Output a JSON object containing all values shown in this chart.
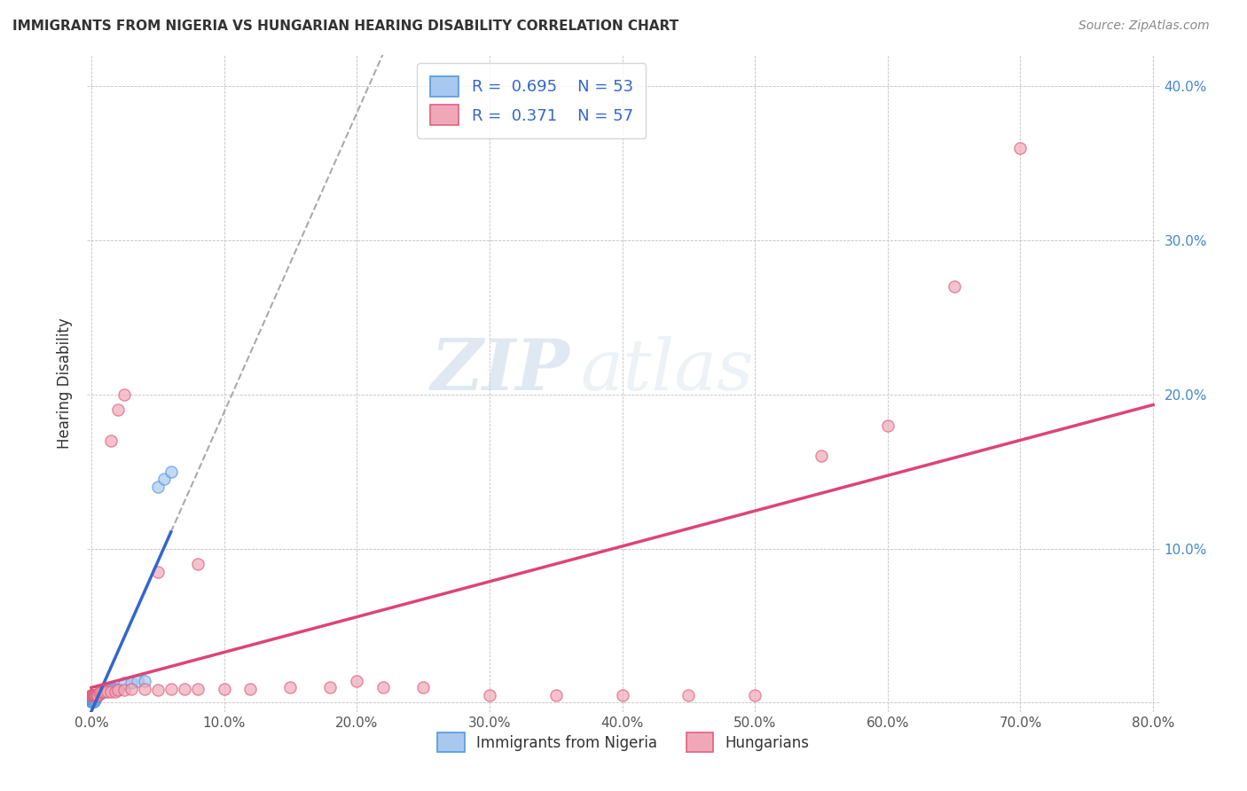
{
  "title": "IMMIGRANTS FROM NIGERIA VS HUNGARIAN HEARING DISABILITY CORRELATION CHART",
  "source": "Source: ZipAtlas.com",
  "ylabel": "Hearing Disability",
  "xlim": [
    -0.003,
    0.805
  ],
  "ylim": [
    -0.006,
    0.42
  ],
  "color_nigeria_fill": "#a8c8f0",
  "color_nigeria_edge": "#5599dd",
  "color_hungarian_fill": "#f0a8b8",
  "color_hungarian_edge": "#e06080",
  "color_nigeria_line": "#3366cc",
  "color_hungarian_line": "#dd4477",
  "color_dashed": "#aaaaaa",
  "watermark_color": "#dde8f0",
  "nigeria_x": [
    0.0002,
    0.0003,
    0.0004,
    0.0005,
    0.0006,
    0.0007,
    0.0008,
    0.0009,
    0.001,
    0.0011,
    0.0012,
    0.0013,
    0.0014,
    0.0015,
    0.0016,
    0.0017,
    0.0018,
    0.0019,
    0.002,
    0.0021,
    0.0022,
    0.0023,
    0.0024,
    0.0025,
    0.0026,
    0.0027,
    0.003,
    0.0032,
    0.0035,
    0.004,
    0.0042,
    0.0045,
    0.005,
    0.0055,
    0.006,
    0.0065,
    0.007,
    0.0075,
    0.008,
    0.009,
    0.01,
    0.012,
    0.014,
    0.016,
    0.018,
    0.02,
    0.025,
    0.03,
    0.035,
    0.04,
    0.05,
    0.055,
    0.06
  ],
  "nigeria_y": [
    0.001,
    0.001,
    0.001,
    0.002,
    0.001,
    0.002,
    0.001,
    0.001,
    0.002,
    0.001,
    0.002,
    0.001,
    0.002,
    0.001,
    0.002,
    0.002,
    0.001,
    0.002,
    0.002,
    0.002,
    0.003,
    0.002,
    0.003,
    0.003,
    0.003,
    0.002,
    0.003,
    0.003,
    0.004,
    0.004,
    0.004,
    0.005,
    0.005,
    0.006,
    0.006,
    0.006,
    0.007,
    0.007,
    0.007,
    0.008,
    0.009,
    0.009,
    0.009,
    0.009,
    0.009,
    0.009,
    0.013,
    0.013,
    0.014,
    0.014,
    0.14,
    0.145,
    0.15
  ],
  "hungarian_x": [
    0.0002,
    0.0003,
    0.0004,
    0.0005,
    0.0006,
    0.0007,
    0.0008,
    0.001,
    0.0012,
    0.0014,
    0.0016,
    0.0018,
    0.002,
    0.0022,
    0.0024,
    0.0026,
    0.003,
    0.0035,
    0.004,
    0.0045,
    0.005,
    0.006,
    0.007,
    0.008,
    0.01,
    0.012,
    0.015,
    0.018,
    0.02,
    0.025,
    0.03,
    0.04,
    0.05,
    0.06,
    0.07,
    0.08,
    0.1,
    0.12,
    0.15,
    0.18,
    0.2,
    0.22,
    0.25,
    0.3,
    0.35,
    0.4,
    0.45,
    0.5,
    0.55,
    0.6,
    0.65,
    0.7,
    0.015,
    0.02,
    0.025,
    0.05,
    0.08
  ],
  "hungarian_y": [
    0.005,
    0.005,
    0.005,
    0.005,
    0.005,
    0.005,
    0.005,
    0.005,
    0.005,
    0.005,
    0.005,
    0.005,
    0.005,
    0.005,
    0.005,
    0.005,
    0.005,
    0.005,
    0.005,
    0.005,
    0.005,
    0.006,
    0.007,
    0.007,
    0.007,
    0.007,
    0.007,
    0.007,
    0.008,
    0.008,
    0.009,
    0.009,
    0.008,
    0.009,
    0.009,
    0.009,
    0.009,
    0.009,
    0.01,
    0.01,
    0.014,
    0.01,
    0.01,
    0.005,
    0.005,
    0.005,
    0.005,
    0.005,
    0.16,
    0.18,
    0.27,
    0.36,
    0.17,
    0.19,
    0.2,
    0.085,
    0.09
  ],
  "yticks": [
    0.0,
    0.1,
    0.2,
    0.3,
    0.4
  ],
  "xticks": [
    0.0,
    0.1,
    0.2,
    0.3,
    0.4,
    0.5,
    0.6,
    0.7,
    0.8
  ]
}
